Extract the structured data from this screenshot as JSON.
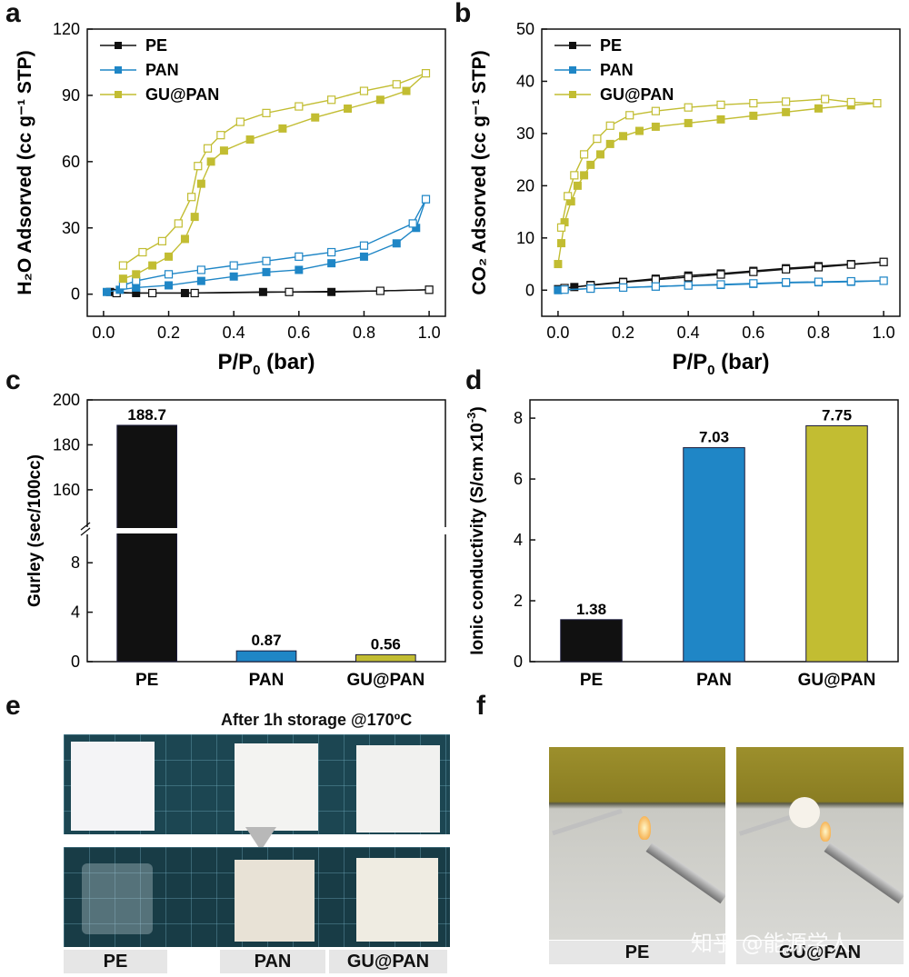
{
  "panels": {
    "a": "a",
    "b": "b",
    "c": "c",
    "d": "d",
    "e": "e",
    "f": "f"
  },
  "colors": {
    "pe": "#111111",
    "pan": "#1f86c6",
    "gu": "#c2bd32"
  },
  "chart_data": [
    {
      "id": "a",
      "type": "line",
      "xlabel": "P/P",
      "xlabel_sub": "0",
      "xlabel_tail": " (bar)",
      "ylabel": "H₂O Adsorved (cc g⁻¹ STP)",
      "xlim": [
        -0.05,
        1.05
      ],
      "ylim": [
        -10,
        120
      ],
      "xticks": [
        0.0,
        0.2,
        0.4,
        0.6,
        0.8,
        1.0
      ],
      "xtick_labels": [
        "0.0",
        "0.2",
        "0.4",
        "0.6",
        "0.8",
        "1.0"
      ],
      "yticks": [
        0,
        30,
        60,
        90,
        120
      ],
      "ytick_labels": [
        "0",
        "30",
        "60",
        "90",
        "120"
      ],
      "legend": [
        "PE",
        "PAN",
        "GU@PAN"
      ],
      "series": [
        {
          "name": "PE",
          "color_key": "pe",
          "adsorption": [
            [
              0.02,
              1
            ],
            [
              0.1,
              0.5
            ],
            [
              0.25,
              0.5
            ],
            [
              0.49,
              1
            ],
            [
              0.7,
              1
            ],
            [
              1.0,
              2
            ]
          ],
          "desorption": [
            [
              1.0,
              2
            ],
            [
              0.85,
              1.5
            ],
            [
              0.57,
              1
            ],
            [
              0.28,
              0.5
            ],
            [
              0.15,
              0.5
            ],
            [
              0.04,
              0.5
            ]
          ]
        },
        {
          "name": "PAN",
          "color_key": "pan",
          "adsorption": [
            [
              0.01,
              1
            ],
            [
              0.05,
              2
            ],
            [
              0.1,
              3
            ],
            [
              0.2,
              4
            ],
            [
              0.3,
              6
            ],
            [
              0.4,
              8
            ],
            [
              0.5,
              10
            ],
            [
              0.6,
              11
            ],
            [
              0.7,
              14
            ],
            [
              0.8,
              17
            ],
            [
              0.9,
              23
            ],
            [
              0.96,
              30
            ],
            [
              0.99,
              43
            ]
          ],
          "desorption": [
            [
              0.99,
              43
            ],
            [
              0.95,
              32
            ],
            [
              0.8,
              22
            ],
            [
              0.7,
              19
            ],
            [
              0.6,
              17
            ],
            [
              0.5,
              15
            ],
            [
              0.4,
              13
            ],
            [
              0.3,
              11
            ],
            [
              0.2,
              9
            ],
            [
              0.1,
              6
            ],
            [
              0.06,
              4
            ]
          ]
        },
        {
          "name": "GU@PAN",
          "color_key": "gu",
          "adsorption": [
            [
              0.06,
              7
            ],
            [
              0.1,
              9
            ],
            [
              0.15,
              13
            ],
            [
              0.2,
              17
            ],
            [
              0.25,
              25
            ],
            [
              0.28,
              35
            ],
            [
              0.3,
              50
            ],
            [
              0.33,
              60
            ],
            [
              0.37,
              65
            ],
            [
              0.45,
              70
            ],
            [
              0.55,
              75
            ],
            [
              0.65,
              80
            ],
            [
              0.75,
              84
            ],
            [
              0.85,
              88
            ],
            [
              0.93,
              92
            ],
            [
              0.99,
              100
            ]
          ],
          "desorption": [
            [
              0.99,
              100
            ],
            [
              0.9,
              95
            ],
            [
              0.8,
              92
            ],
            [
              0.7,
              88
            ],
            [
              0.6,
              85
            ],
            [
              0.5,
              82
            ],
            [
              0.42,
              78
            ],
            [
              0.36,
              72
            ],
            [
              0.32,
              66
            ],
            [
              0.29,
              58
            ],
            [
              0.27,
              44
            ],
            [
              0.23,
              32
            ],
            [
              0.18,
              24
            ],
            [
              0.12,
              19
            ],
            [
              0.06,
              13
            ]
          ]
        }
      ]
    },
    {
      "id": "b",
      "type": "line",
      "xlabel": "P/P",
      "xlabel_sub": "0",
      "xlabel_tail": " (bar)",
      "ylabel": "CO₂ Adsorved (cc g⁻¹ STP)",
      "xlim": [
        -0.05,
        1.05
      ],
      "ylim": [
        -5,
        50
      ],
      "xticks": [
        0.0,
        0.2,
        0.4,
        0.6,
        0.8,
        1.0
      ],
      "xtick_labels": [
        "0.0",
        "0.2",
        "0.4",
        "0.6",
        "0.8",
        "1.0"
      ],
      "yticks": [
        0,
        10,
        20,
        30,
        40,
        50
      ],
      "ytick_labels": [
        "0",
        "10",
        "20",
        "30",
        "40",
        "50"
      ],
      "legend": [
        "PE",
        "PAN",
        "GU@PAN"
      ],
      "series": [
        {
          "name": "PE",
          "color_key": "pe",
          "adsorption": [
            [
              0.0,
              0.2
            ],
            [
              0.05,
              0.6
            ],
            [
              0.1,
              1
            ],
            [
              0.2,
              1.6
            ],
            [
              0.3,
              2.2
            ],
            [
              0.4,
              2.8
            ],
            [
              0.5,
              3.2
            ],
            [
              0.6,
              3.7
            ],
            [
              0.7,
              4.2
            ],
            [
              0.8,
              4.6
            ],
            [
              0.9,
              5
            ],
            [
              1.0,
              5.4
            ]
          ],
          "desorption": [
            [
              1.0,
              5.4
            ],
            [
              0.9,
              4.9
            ],
            [
              0.8,
              4.4
            ],
            [
              0.7,
              4
            ],
            [
              0.6,
              3.5
            ],
            [
              0.5,
              3
            ],
            [
              0.4,
              2.5
            ],
            [
              0.3,
              2
            ],
            [
              0.2,
              1.5
            ],
            [
              0.1,
              0.9
            ],
            [
              0.02,
              0.4
            ]
          ]
        },
        {
          "name": "PAN",
          "color_key": "pan",
          "adsorption": [
            [
              0.0,
              0
            ],
            [
              0.1,
              0.3
            ],
            [
              0.2,
              0.5
            ],
            [
              0.3,
              0.7
            ],
            [
              0.4,
              0.9
            ],
            [
              0.5,
              1
            ],
            [
              0.6,
              1.2
            ],
            [
              0.7,
              1.4
            ],
            [
              0.8,
              1.5
            ],
            [
              0.9,
              1.6
            ],
            [
              1.0,
              1.8
            ]
          ],
          "desorption": [
            [
              1.0,
              1.8
            ],
            [
              0.9,
              1.7
            ],
            [
              0.8,
              1.6
            ],
            [
              0.7,
              1.5
            ],
            [
              0.6,
              1.3
            ],
            [
              0.5,
              1.1
            ],
            [
              0.4,
              0.9
            ],
            [
              0.3,
              0.7
            ],
            [
              0.2,
              0.5
            ],
            [
              0.1,
              0.3
            ],
            [
              0.02,
              0.1
            ]
          ]
        },
        {
          "name": "GU@PAN",
          "color_key": "gu",
          "adsorption": [
            [
              0.0,
              5
            ],
            [
              0.01,
              9
            ],
            [
              0.02,
              13
            ],
            [
              0.04,
              17
            ],
            [
              0.06,
              20
            ],
            [
              0.08,
              22
            ],
            [
              0.1,
              24
            ],
            [
              0.13,
              26
            ],
            [
              0.16,
              28
            ],
            [
              0.2,
              29.5
            ],
            [
              0.25,
              30.5
            ],
            [
              0.3,
              31.3
            ],
            [
              0.4,
              32
            ],
            [
              0.5,
              32.7
            ],
            [
              0.6,
              33.4
            ],
            [
              0.7,
              34.1
            ],
            [
              0.8,
              34.8
            ],
            [
              0.9,
              35.4
            ],
            [
              0.98,
              35.8
            ]
          ],
          "desorption": [
            [
              0.98,
              35.8
            ],
            [
              0.9,
              36
            ],
            [
              0.82,
              36.6
            ],
            [
              0.7,
              36.1
            ],
            [
              0.6,
              35.8
            ],
            [
              0.5,
              35.5
            ],
            [
              0.4,
              35
            ],
            [
              0.3,
              34.3
            ],
            [
              0.22,
              33.5
            ],
            [
              0.16,
              31.5
            ],
            [
              0.12,
              29
            ],
            [
              0.08,
              26
            ],
            [
              0.05,
              22
            ],
            [
              0.03,
              18
            ],
            [
              0.01,
              12
            ]
          ]
        }
      ]
    },
    {
      "id": "c",
      "type": "bar",
      "ylabel": "Gurley (sec/100cc)",
      "categories": [
        "PE",
        "PAN",
        "GU@PAN"
      ],
      "values": [
        188.7,
        0.87,
        0.56
      ],
      "value_labels": [
        "188.7",
        "0.87",
        "0.56"
      ],
      "color_keys": [
        "pe",
        "pan",
        "gu"
      ],
      "axis_break": {
        "lower": [
          0,
          10
        ],
        "upper": [
          145,
          200
        ]
      },
      "yticks_lower": [
        0,
        4,
        8
      ],
      "ytick_labels_lower": [
        "0",
        "4",
        "8"
      ],
      "yticks_upper": [
        160,
        180,
        200
      ],
      "ytick_labels_upper": [
        "160",
        "180",
        "200"
      ]
    },
    {
      "id": "d",
      "type": "bar",
      "ylabel": "Ionic conductivity (S/cm x10",
      "ylabel_exp": "-3",
      "ylabel_tail": ")",
      "categories": [
        "PE",
        "PAN",
        "GU@PAN"
      ],
      "values": [
        1.38,
        7.03,
        7.75
      ],
      "value_labels": [
        "1.38",
        "7.03",
        "7.75"
      ],
      "color_keys": [
        "pe",
        "pan",
        "gu"
      ],
      "ylim": [
        0,
        8.6
      ],
      "yticks": [
        0,
        2,
        4,
        6,
        8
      ],
      "ytick_labels": [
        "0",
        "2",
        "4",
        "6",
        "8"
      ]
    }
  ],
  "panel_e": {
    "title": "After 1h storage @170ºC",
    "labels": [
      "PE",
      "PAN",
      "GU@PAN"
    ]
  },
  "panel_f": {
    "labels": [
      "PE",
      "GU@PAN"
    ],
    "watermark": "知乎 @能源学人"
  }
}
